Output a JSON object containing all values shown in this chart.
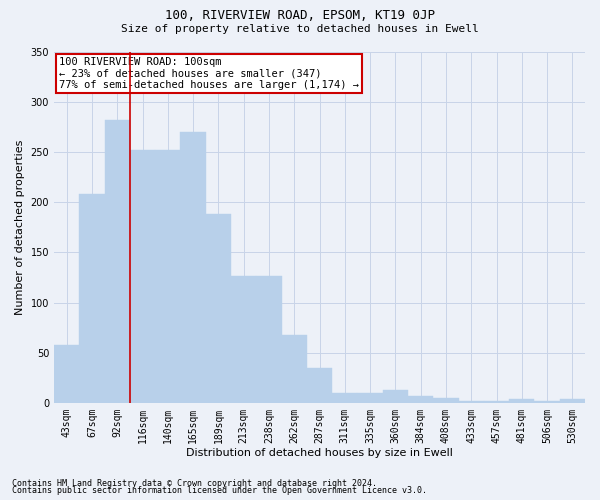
{
  "title": "100, RIVERVIEW ROAD, EPSOM, KT19 0JP",
  "subtitle": "Size of property relative to detached houses in Ewell",
  "xlabel": "Distribution of detached houses by size in Ewell",
  "ylabel": "Number of detached properties",
  "categories": [
    "43sqm",
    "67sqm",
    "92sqm",
    "116sqm",
    "140sqm",
    "165sqm",
    "189sqm",
    "213sqm",
    "238sqm",
    "262sqm",
    "287sqm",
    "311sqm",
    "335sqm",
    "360sqm",
    "384sqm",
    "408sqm",
    "433sqm",
    "457sqm",
    "481sqm",
    "506sqm",
    "530sqm"
  ],
  "values": [
    58,
    208,
    282,
    252,
    252,
    270,
    188,
    127,
    127,
    68,
    35,
    10,
    10,
    13,
    7,
    5,
    2,
    2,
    4,
    2,
    4
  ],
  "bar_color": "#b8d0ea",
  "bar_edgecolor": "#b8d0ea",
  "grid_color": "#c8d4e8",
  "background_color": "#edf1f8",
  "vline_x": 2.5,
  "vline_color": "#cc0000",
  "annotation_text": "100 RIVERVIEW ROAD: 100sqm\n← 23% of detached houses are smaller (347)\n77% of semi-detached houses are larger (1,174) →",
  "annotation_box_color": "white",
  "annotation_box_edgecolor": "#cc0000",
  "footer1": "Contains HM Land Registry data © Crown copyright and database right 2024.",
  "footer2": "Contains public sector information licensed under the Open Government Licence v3.0.",
  "ylim": [
    0,
    350
  ],
  "yticks": [
    0,
    50,
    100,
    150,
    200,
    250,
    300,
    350
  ],
  "title_fontsize": 9,
  "subtitle_fontsize": 8,
  "ylabel_fontsize": 8,
  "xlabel_fontsize": 8,
  "tick_fontsize": 7,
  "annot_fontsize": 7.5,
  "footer_fontsize": 6
}
